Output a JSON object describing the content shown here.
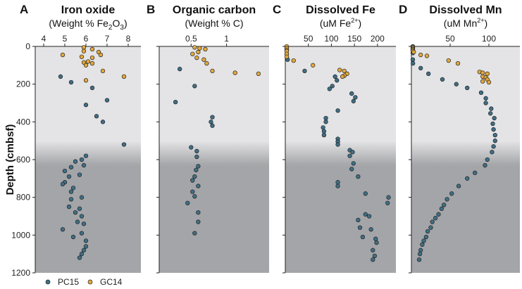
{
  "chart_data": {
    "type": "scatter",
    "ylabel": "Depth (cmbsf)",
    "ylim": [
      0,
      1200
    ],
    "yticks": [
      0,
      200,
      400,
      600,
      800,
      1000,
      1200
    ],
    "y_inverted": true,
    "xaxis_position": "top",
    "colors": {
      "PC15": "#3f6f86",
      "GC14": "#e3a83b",
      "band_light": "#e4e4e6",
      "band_dark": "#a4a5a8"
    },
    "legend": {
      "placement": "bottom-left",
      "entries": [
        "PC15",
        "GC14"
      ]
    },
    "panels": [
      {
        "letter": "A",
        "title": "Iron oxide",
        "unit_prefix": "(Weight % Fe",
        "unit_sub": "2",
        "unit_mid": "O",
        "unit_sub2": "3",
        "unit_suffix": ")",
        "xlim": [
          3.6,
          8.6
        ],
        "xticks": [
          4,
          5,
          6,
          7,
          8
        ],
        "series": [
          {
            "name": "PC15",
            "points": [
              [
                4.8,
                160
              ],
              [
                5.3,
                190
              ],
              [
                6.3,
                220
              ],
              [
                6.0,
                310
              ],
              [
                7.0,
                285
              ],
              [
                6.5,
                370
              ],
              [
                6.8,
                400
              ],
              [
                7.8,
                520
              ],
              [
                6.0,
                580
              ],
              [
                5.8,
                600
              ],
              [
                5.5,
                610
              ],
              [
                5.9,
                630
              ],
              [
                5.3,
                640
              ],
              [
                5.0,
                660
              ],
              [
                5.7,
                680
              ],
              [
                5.2,
                690
              ],
              [
                5.0,
                720
              ],
              [
                4.9,
                730
              ],
              [
                5.4,
                750
              ],
              [
                5.3,
                770
              ],
              [
                5.8,
                800
              ],
              [
                5.3,
                810
              ],
              [
                5.2,
                850
              ],
              [
                5.7,
                860
              ],
              [
                5.5,
                880
              ],
              [
                5.8,
                900
              ],
              [
                5.6,
                930
              ],
              [
                5.9,
                940
              ],
              [
                4.9,
                970
              ],
              [
                5.8,
                990
              ],
              [
                5.4,
                1010
              ],
              [
                6.0,
                1030
              ],
              [
                6.0,
                1060
              ],
              [
                5.9,
                1080
              ],
              [
                5.8,
                1100
              ],
              [
                5.7,
                1120
              ]
            ]
          },
          {
            "name": "GC14",
            "points": [
              [
                5.9,
                5
              ],
              [
                6.3,
                15
              ],
              [
                5.9,
                25
              ],
              [
                6.6,
                30
              ],
              [
                6.7,
                45
              ],
              [
                4.9,
                45
              ],
              [
                5.8,
                55
              ],
              [
                6.3,
                60
              ],
              [
                6.1,
                80
              ],
              [
                5.9,
                85
              ],
              [
                6.3,
                90
              ],
              [
                6.0,
                100
              ],
              [
                6.8,
                130
              ],
              [
                7.8,
                160
              ],
              [
                6.0,
                180
              ]
            ]
          }
        ]
      },
      {
        "letter": "B",
        "title": "Organic carbon",
        "unit_prefix": "(Weight % C)",
        "xlim": [
          0.05,
          1.6
        ],
        "xticks": [
          0.5,
          1
        ],
        "series": [
          {
            "name": "PC15",
            "points": [
              [
                0.34,
                120
              ],
              [
                0.55,
                210
              ],
              [
                0.28,
                295
              ],
              [
                0.8,
                375
              ],
              [
                0.78,
                400
              ],
              [
                0.8,
                420
              ],
              [
                0.5,
                535
              ],
              [
                0.58,
                555
              ],
              [
                0.58,
                585
              ],
              [
                0.6,
                635
              ],
              [
                0.57,
                655
              ],
              [
                0.55,
                690
              ],
              [
                0.52,
                710
              ],
              [
                0.6,
                740
              ],
              [
                0.52,
                770
              ],
              [
                0.55,
                795
              ],
              [
                0.45,
                830
              ],
              [
                0.6,
                880
              ],
              [
                0.6,
                930
              ],
              [
                0.55,
                990
              ]
            ]
          },
          {
            "name": "GC14",
            "points": [
              [
                0.55,
                5
              ],
              [
                0.62,
                10
              ],
              [
                0.7,
                15
              ],
              [
                0.6,
                30
              ],
              [
                0.52,
                40
              ],
              [
                0.58,
                60
              ],
              [
                0.68,
                70
              ],
              [
                0.72,
                90
              ],
              [
                0.8,
                130
              ],
              [
                1.12,
                140
              ],
              [
                1.45,
                145
              ]
            ]
          }
        ]
      },
      {
        "letter": "C",
        "title": "Dissolved Fe",
        "unit_prefix": "(uM Fe",
        "unit_sup": "2+",
        "unit_suffix": ")",
        "xlim": [
          0,
          240
        ],
        "xticks": [
          50,
          100,
          150,
          200
        ],
        "series": [
          {
            "name": "PC15",
            "points": [
              [
                0,
                5
              ],
              [
                0,
                10
              ],
              [
                1,
                20
              ],
              [
                2,
                40
              ],
              [
                5,
                70
              ],
              [
                42,
                130
              ],
              [
                108,
                160
              ],
              [
                112,
                180
              ],
              [
                102,
                210
              ],
              [
                96,
                225
              ],
              [
                144,
                250
              ],
              [
                152,
                270
              ],
              [
                148,
                290
              ],
              [
                114,
                340
              ],
              [
                88,
                380
              ],
              [
                88,
                400
              ],
              [
                82,
                430
              ],
              [
                84,
                450
              ],
              [
                84,
                470
              ],
              [
                114,
                490
              ],
              [
                114,
                505
              ],
              [
                114,
                520
              ],
              [
                140,
                550
              ],
              [
                146,
                560
              ],
              [
                140,
                580
              ],
              [
                148,
                620
              ],
              [
                144,
                650
              ],
              [
                158,
                690
              ],
              [
                114,
                720
              ],
              [
                114,
                740
              ],
              [
                174,
                780
              ],
              [
                224,
                800
              ],
              [
                222,
                830
              ],
              [
                174,
                890
              ],
              [
                182,
                900
              ],
              [
                158,
                920
              ],
              [
                162,
                960
              ],
              [
                186,
                970
              ],
              [
                168,
                1010
              ],
              [
                196,
                1020
              ],
              [
                198,
                1040
              ],
              [
                190,
                1080
              ],
              [
                194,
                1110
              ],
              [
                190,
                1130
              ]
            ]
          },
          {
            "name": "GC14",
            "points": [
              [
                0,
                0
              ],
              [
                0,
                10
              ],
              [
                1,
                20
              ],
              [
                0,
                25
              ],
              [
                2,
                40
              ],
              [
                0,
                55
              ],
              [
                18,
                75
              ],
              [
                60,
                100
              ],
              [
                118,
                125
              ],
              [
                128,
                130
              ],
              [
                134,
                145
              ],
              [
                128,
                155
              ],
              [
                124,
                160
              ]
            ]
          }
        ]
      },
      {
        "letter": "D",
        "title": "Dissolved Mn",
        "unit_prefix": "(uM Mn",
        "unit_sup": "2+",
        "unit_suffix": ")",
        "xlim": [
          0,
          140
        ],
        "xticks": [
          50,
          100
        ],
        "series": [
          {
            "name": "PC15",
            "points": [
              [
                0,
                0
              ],
              [
                0,
                5
              ],
              [
                0,
                20
              ],
              [
                0,
                35
              ],
              [
                0,
                70
              ],
              [
                2,
                90
              ],
              [
                12,
                115
              ],
              [
                22,
                145
              ],
              [
                40,
                175
              ],
              [
                58,
                200
              ],
              [
                72,
                220
              ],
              [
                90,
                245
              ],
              [
                96,
                275
              ],
              [
                96,
                300
              ],
              [
                103,
                330
              ],
              [
                102,
                355
              ],
              [
                107,
                380
              ],
              [
                105,
                410
              ],
              [
                106,
                440
              ],
              [
                108,
                470
              ],
              [
                108,
                500
              ],
              [
                106,
                530
              ],
              [
                104,
                560
              ],
              [
                98,
                600
              ],
              [
                95,
                630
              ],
              [
                82,
                670
              ],
              [
                72,
                700
              ],
              [
                61,
                740
              ],
              [
                52,
                780
              ],
              [
                46,
                810
              ],
              [
                42,
                840
              ],
              [
                39,
                860
              ],
              [
                35,
                890
              ],
              [
                31,
                910
              ],
              [
                27,
                930
              ],
              [
                25,
                960
              ],
              [
                21,
                980
              ],
              [
                19,
                1010
              ],
              [
                16,
                1030
              ],
              [
                14,
                1050
              ],
              [
                12,
                1080
              ],
              [
                11,
                1100
              ],
              [
                10,
                1130
              ]
            ]
          },
          {
            "name": "GC14",
            "points": [
              [
                0,
                5
              ],
              [
                0,
                10
              ],
              [
                0,
                15
              ],
              [
                0,
                20
              ],
              [
                0,
                25
              ],
              [
                3,
                30
              ],
              [
                12,
                45
              ],
              [
                20,
                50
              ],
              [
                48,
                75
              ],
              [
                60,
                90
              ],
              [
                88,
                135
              ],
              [
                92,
                140
              ],
              [
                98,
                145
              ],
              [
                92,
                160
              ],
              [
                96,
                165
              ],
              [
                98,
                175
              ],
              [
                92,
                185
              ],
              [
                100,
                190
              ]
            ]
          }
        ]
      }
    ]
  }
}
